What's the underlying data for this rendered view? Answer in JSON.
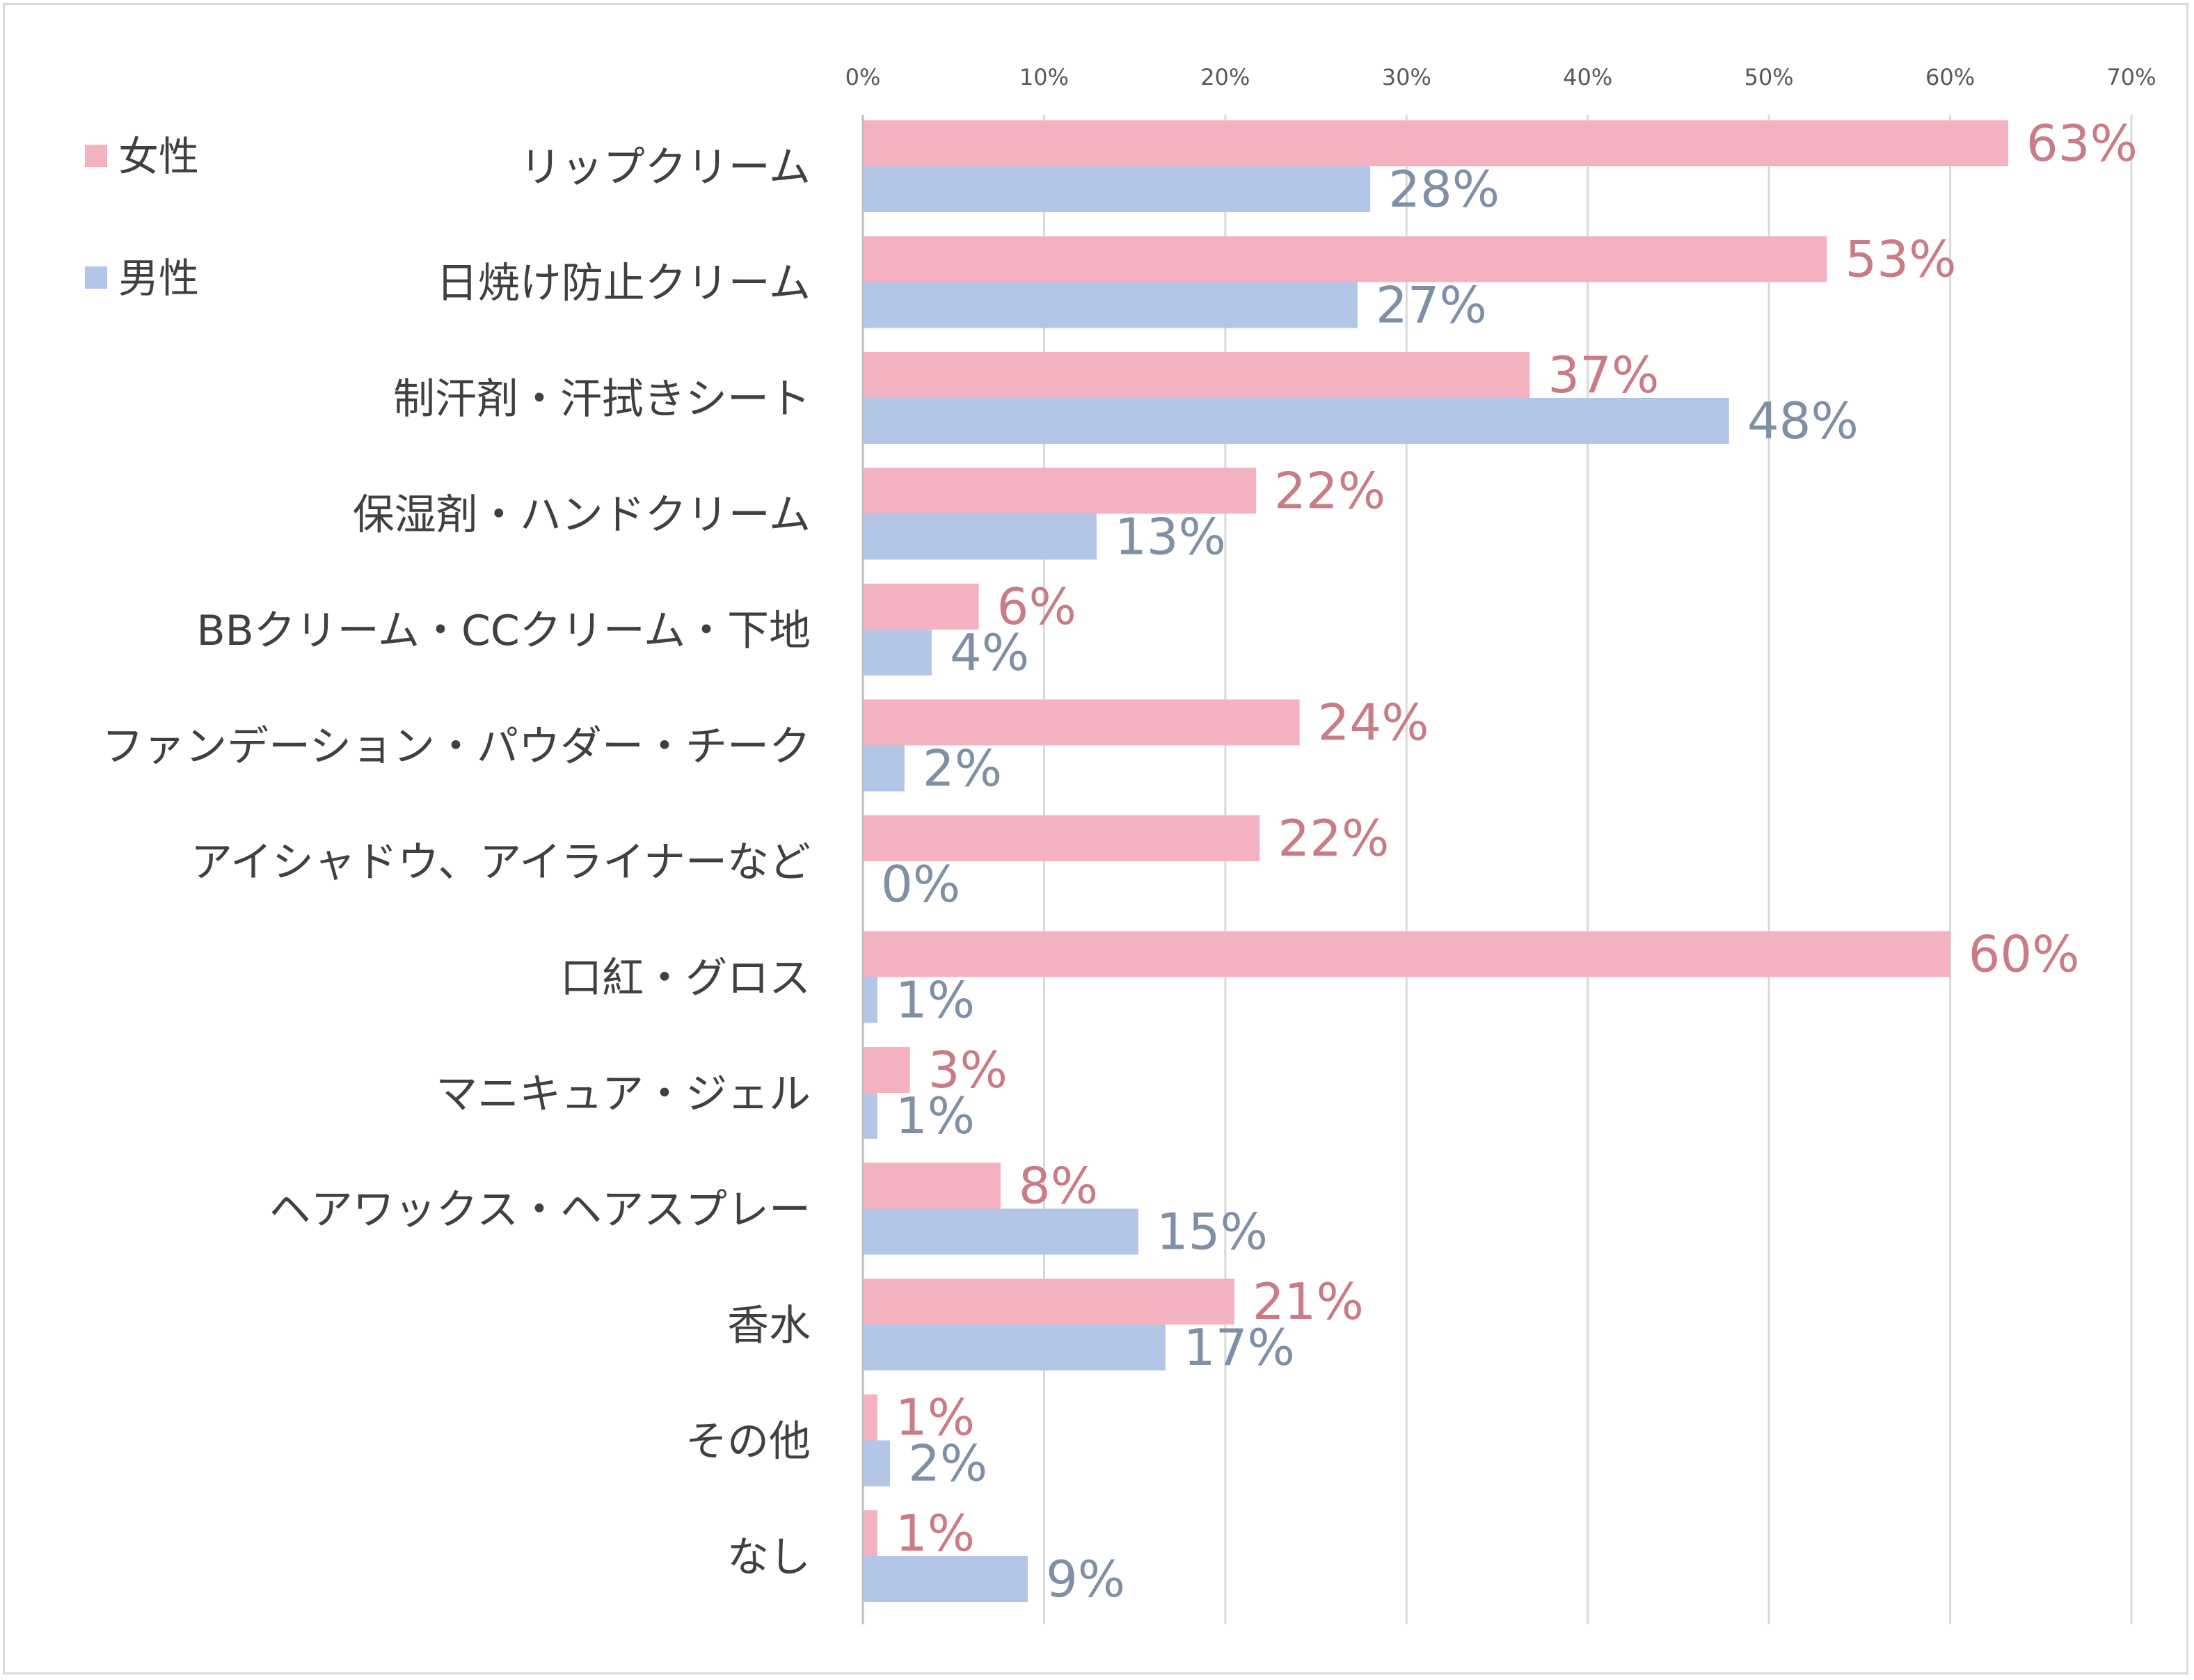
{
  "chart_data": {
    "type": "bar",
    "orientation": "horizontal",
    "title": "",
    "xlabel": "",
    "ylabel": "",
    "xlim": [
      0,
      70
    ],
    "x_ticks": [
      0,
      10,
      20,
      30,
      40,
      50,
      60,
      70
    ],
    "x_tick_labels": [
      "0%",
      "10%",
      "20%",
      "30%",
      "40%",
      "50%",
      "60%",
      "70%"
    ],
    "grid": true,
    "legend_position": "top-left",
    "categories": [
      "リップクリーム",
      "日焼け防止クリーム",
      "制汗剤・汗拭きシート",
      "保湿剤・ハンドクリーム",
      "BBクリーム・CCクリーム・下地",
      "ファンデーション・パウダー・チーク",
      "アイシャドウ、アイライナーなど",
      "口紅・グロス",
      "マニキュア・ジェル",
      "ヘアワックス・ヘアスプレー",
      "香水",
      "その他",
      "なし"
    ],
    "series": [
      {
        "name": "女性",
        "color": "#f4b2c1",
        "label_color": "#c97b86",
        "values": [
          63.2,
          53.2,
          36.8,
          21.7,
          6.4,
          24.1,
          21.9,
          60.0,
          2.6,
          7.6,
          20.5,
          0.8,
          0.8
        ],
        "labels": [
          "63%",
          "53%",
          "37%",
          "22%",
          "6%",
          "24%",
          "22%",
          "60%",
          "3%",
          "8%",
          "21%",
          "1%",
          "1%"
        ]
      },
      {
        "name": "男性",
        "color": "#b4c6e7",
        "label_color": "#7f8fa6",
        "values": [
          28.0,
          27.3,
          47.8,
          12.9,
          3.8,
          2.3,
          0.0,
          0.8,
          0.8,
          15.2,
          16.7,
          1.5,
          9.1
        ],
        "labels": [
          "28%",
          "27%",
          "48%",
          "13%",
          "4%",
          "2%",
          "0%",
          "1%",
          "1%",
          "15%",
          "17%",
          "2%",
          "9%"
        ]
      }
    ]
  }
}
